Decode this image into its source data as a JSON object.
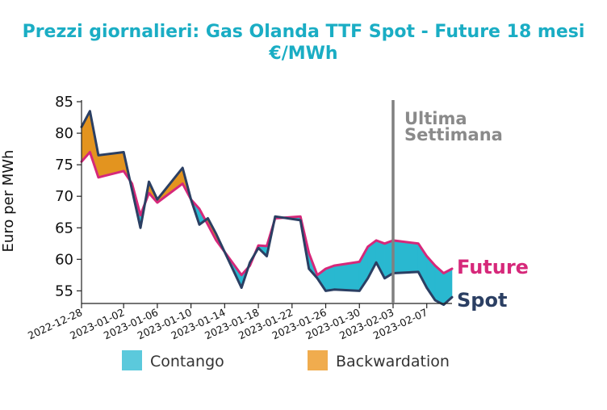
{
  "chart_data": {
    "type": "area",
    "title_line1": "Prezzi giornalieri: Gas Olanda TTF Spot - Future 18 mesi",
    "title_line2": "€/MWh",
    "ylabel": "Euro per MWh",
    "xlabel": "",
    "ylim": [
      53,
      85
    ],
    "yticks": [
      55,
      60,
      65,
      70,
      75,
      80,
      85
    ],
    "xlim": [
      "2022-12-28",
      "2023-02-10"
    ],
    "xticks": [
      "2022-12-28",
      "2023-01-02",
      "2023-01-06",
      "2023-01-10",
      "2023-01-14",
      "2023-01-18",
      "2023-01-22",
      "2023-01-26",
      "2023-01-30",
      "2023-02-03",
      "2023-02-07"
    ],
    "x": [
      "2022-12-28",
      "2022-12-29",
      "2022-12-30",
      "2023-01-02",
      "2023-01-03",
      "2023-01-04",
      "2023-01-05",
      "2023-01-06",
      "2023-01-09",
      "2023-01-10",
      "2023-01-11",
      "2023-01-12",
      "2023-01-13",
      "2023-01-16",
      "2023-01-17",
      "2023-01-18",
      "2023-01-19",
      "2023-01-20",
      "2023-01-23",
      "2023-01-24",
      "2023-01-25",
      "2023-01-26",
      "2023-01-27",
      "2023-01-30",
      "2023-01-31",
      "2023-02-01",
      "2023-02-02",
      "2023-02-03",
      "2023-02-06",
      "2023-02-07",
      "2023-02-08",
      "2023-02-09",
      "2023-02-10"
    ],
    "series": [
      {
        "name": "Future",
        "color": "#d6287a",
        "values": [
          75.5,
          77.0,
          73.0,
          74.0,
          72.0,
          67.0,
          70.5,
          69.0,
          72.0,
          69.5,
          68.0,
          65.5,
          63.0,
          57.5,
          59.0,
          62.2,
          62.1,
          66.5,
          66.8,
          61.0,
          57.5,
          58.5,
          59.0,
          59.6,
          62.0,
          63.0,
          62.5,
          63.0,
          62.5,
          60.5,
          59.0,
          57.8,
          58.5
        ]
      },
      {
        "name": "Spot",
        "color": "#2b3f63",
        "values": [
          81.0,
          83.5,
          76.5,
          77.0,
          71.0,
          65.0,
          72.3,
          69.5,
          74.5,
          69.5,
          65.5,
          66.5,
          64.0,
          55.5,
          59.5,
          61.8,
          60.5,
          66.8,
          66.2,
          58.5,
          57.0,
          55.0,
          55.2,
          55.0,
          57.0,
          59.5,
          57.0,
          57.8,
          58.0,
          55.5,
          53.5,
          52.8,
          54.0
        ]
      }
    ],
    "fills": [
      {
        "name": "Contango",
        "color": "#29b8d0",
        "legend_color": "#5bc9dc"
      },
      {
        "name": "Backwardation",
        "color": "#e3941f",
        "legend_color": "#f0ac4e"
      }
    ],
    "annotation": {
      "line1": "Ultima",
      "line2": "Settimana",
      "x": "2023-02-03",
      "color": "#808080"
    },
    "legend": "bottom-center",
    "grid": false
  }
}
